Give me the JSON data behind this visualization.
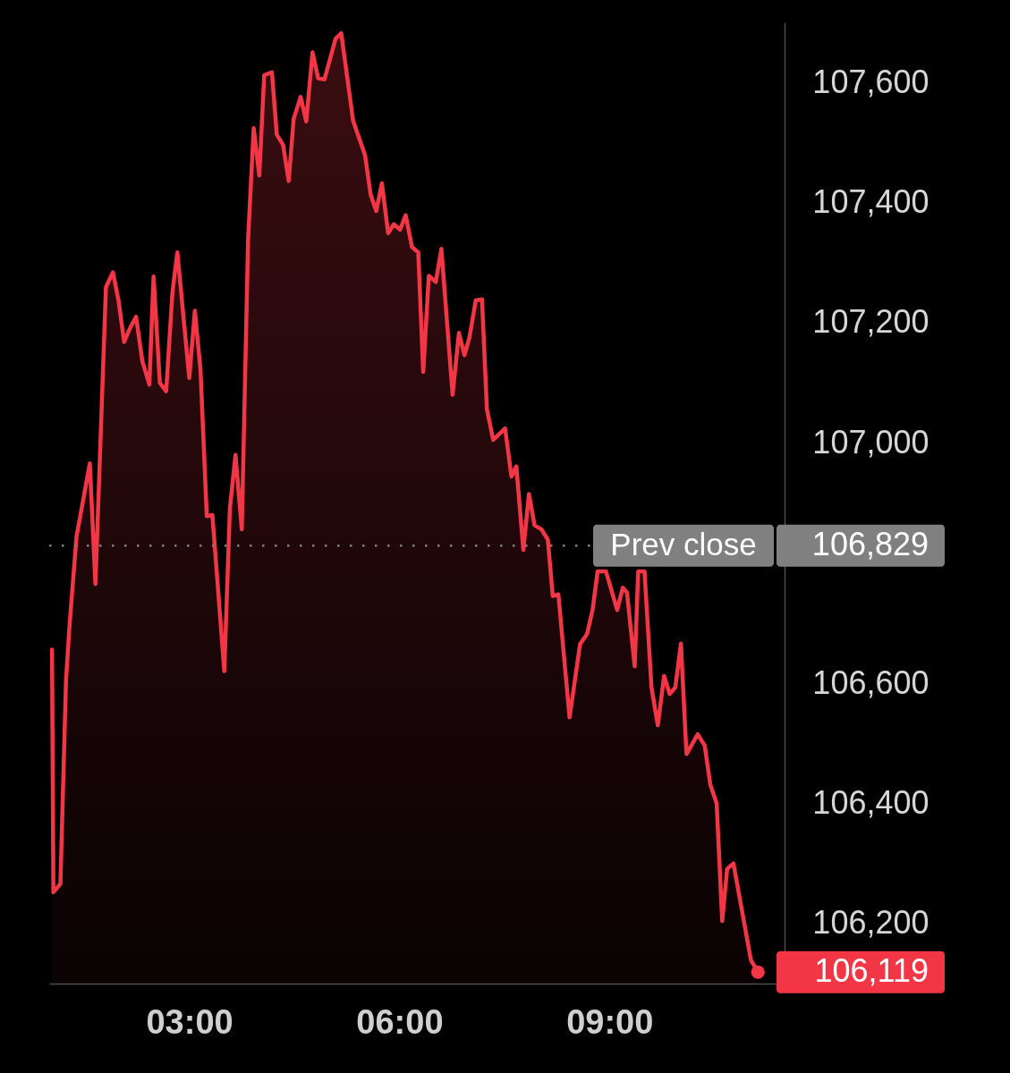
{
  "chart_data": {
    "type": "area",
    "x": [
      1.04,
      1.06,
      1.16,
      1.24,
      1.29,
      1.39,
      1.58,
      1.66,
      1.81,
      1.91,
      1.99,
      2.07,
      2.15,
      2.24,
      2.33,
      2.43,
      2.49,
      2.58,
      2.67,
      2.76,
      2.83,
      3.0,
      3.08,
      3.16,
      3.25,
      3.33,
      3.5,
      3.58,
      3.66,
      3.75,
      3.84,
      3.92,
      4.0,
      4.07,
      4.18,
      4.25,
      4.34,
      4.42,
      4.49,
      4.59,
      4.67,
      4.76,
      4.84,
      4.93,
      5.09,
      5.17,
      5.34,
      5.51,
      5.59,
      5.67,
      5.75,
      5.84,
      5.92,
      6.01,
      6.09,
      6.18,
      6.27,
      6.34,
      6.42,
      6.52,
      6.6,
      6.76,
      6.85,
      6.93,
      7.0,
      7.09,
      7.18,
      7.25,
      7.34,
      7.51,
      7.6,
      7.67,
      7.77,
      7.85,
      7.93,
      8.03,
      8.12,
      8.19,
      8.27,
      8.43,
      8.58,
      8.68,
      8.76,
      8.83,
      8.95,
      9.11,
      9.19,
      9.25,
      9.36,
      9.41,
      9.5,
      9.6,
      9.69,
      9.78,
      9.86,
      9.94,
      10.02,
      10.1,
      10.26,
      10.36,
      10.44,
      10.53,
      10.61,
      10.68,
      10.77,
      11.02,
      11.12
    ],
    "series": [
      {
        "color": "#f23645",
        "values": [
          106656,
          106252,
          106266,
          106605,
          106696,
          106844,
          106966,
          106765,
          107259,
          107284,
          107237,
          107168,
          107190,
          107210,
          107136,
          107097,
          107277,
          107100,
          107086,
          107251,
          107317,
          107108,
          107220,
          107122,
          106878,
          106880,
          106620,
          106891,
          106980,
          106856,
          107339,
          107524,
          107445,
          107612,
          107617,
          107513,
          107496,
          107436,
          107539,
          107576,
          107535,
          107650,
          107607,
          107605,
          107673,
          107682,
          107536,
          107479,
          107413,
          107386,
          107432,
          107349,
          107364,
          107355,
          107379,
          107326,
          107317,
          107118,
          107278,
          107268,
          107323,
          107080,
          107183,
          107146,
          107175,
          107237,
          107239,
          107056,
          107005,
          107024,
          106944,
          106961,
          106822,
          106915,
          106863,
          106856,
          106839,
          106745,
          106748,
          106543,
          106665,
          106682,
          106723,
          106786,
          106786,
          106722,
          106759,
          106751,
          106628,
          106786,
          106786,
          106593,
          106530,
          106612,
          106582,
          106593,
          106666,
          106482,
          106515,
          106496,
          106431,
          106400,
          106204,
          106291,
          106300,
          106139,
          106119
        ]
      },
      {
        "type": "scatter",
        "color": "#f23645",
        "marker": "circle",
        "x": [
          11.12
        ],
        "values": [
          106119
        ],
        "value_labels": [
          "106,119"
        ]
      }
    ],
    "xlim": [
      1.0,
      11.5
    ],
    "xticks": [
      {
        "value": 3,
        "label": "03:00"
      },
      {
        "value": 6,
        "label": "06:00"
      },
      {
        "value": 9,
        "label": "09:00"
      }
    ],
    "ylim": [
      106100,
      107700
    ],
    "yticks": [
      {
        "value": 106200,
        "label": "106,200"
      },
      {
        "value": 106400,
        "label": "106,400"
      },
      {
        "value": 106600,
        "label": "106,600"
      },
      {
        "value": 107000,
        "label": "107,000"
      },
      {
        "value": 107200,
        "label": "107,200"
      },
      {
        "value": 107400,
        "label": "107,400"
      },
      {
        "value": 107600,
        "label": "107,600"
      }
    ],
    "ref_lines": [
      {
        "axis": "y",
        "value": 106829,
        "label": "Prev close",
        "color": "#808080",
        "line_style": "dotted"
      }
    ],
    "annotations": [
      "106,829"
    ]
  }
}
